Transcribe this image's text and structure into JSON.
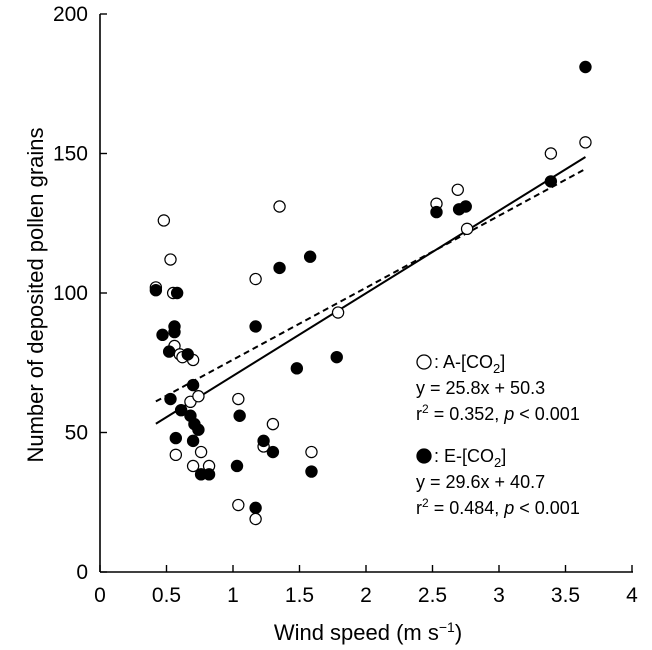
{
  "chart_data": {
    "type": "scatter",
    "xlabel": "Wind speed (m s",
    "xlabel_sup": "−1",
    "xlabel_close": ")",
    "ylabel": "Number of deposited pollen grains",
    "xlim": [
      0,
      4
    ],
    "ylim": [
      0,
      200
    ],
    "x_ticks": [
      "0",
      "0.5",
      "1",
      "1.5",
      "2",
      "2.5",
      "3",
      "3.5",
      "4"
    ],
    "y_ticks": [
      "0",
      "50",
      "100",
      "150",
      "200"
    ],
    "grid": false,
    "legend_position": "right",
    "series": [
      {
        "name": "A-[CO2]",
        "name_prefix": ": A-[CO",
        "name_sub": "2",
        "name_suffix": "]",
        "marker": "open-circle",
        "equation": "y = 25.8x + 50.3",
        "stats": {
          "r_label": "r",
          "r_sup": "2",
          "r_value": " = 0.352, ",
          "p_label": "p",
          "p_value": " < 0.001"
        },
        "fit": {
          "slope": 25.8,
          "intercept": 50.3,
          "style": "dashed"
        },
        "points": [
          [
            0.42,
            102
          ],
          [
            0.48,
            126
          ],
          [
            0.53,
            112
          ],
          [
            0.55,
            100
          ],
          [
            0.56,
            81
          ],
          [
            0.57,
            42
          ],
          [
            0.6,
            78
          ],
          [
            0.62,
            77
          ],
          [
            0.68,
            61
          ],
          [
            0.7,
            76
          ],
          [
            0.7,
            38
          ],
          [
            0.74,
            63
          ],
          [
            0.76,
            43
          ],
          [
            0.82,
            38
          ],
          [
            1.04,
            62
          ],
          [
            1.04,
            24
          ],
          [
            1.17,
            105
          ],
          [
            1.17,
            19
          ],
          [
            1.23,
            45
          ],
          [
            1.3,
            53
          ],
          [
            1.35,
            131
          ],
          [
            1.59,
            43
          ],
          [
            1.79,
            93
          ],
          [
            2.53,
            132
          ],
          [
            2.69,
            137
          ],
          [
            2.76,
            123
          ],
          [
            3.39,
            150
          ],
          [
            3.65,
            154
          ]
        ]
      },
      {
        "name": "E-[CO2]",
        "name_prefix": ": E-[CO",
        "name_sub": "2",
        "name_suffix": "]",
        "marker": "filled-circle",
        "equation": "y = 29.6x + 40.7",
        "stats": {
          "r_label": "r",
          "r_sup": "2",
          "r_value": " = 0.484, ",
          "p_label": "p",
          "p_value": " < 0.001"
        },
        "fit": {
          "slope": 29.6,
          "intercept": 40.7,
          "style": "solid"
        },
        "points": [
          [
            0.42,
            101
          ],
          [
            0.47,
            85
          ],
          [
            0.52,
            79
          ],
          [
            0.53,
            62
          ],
          [
            0.56,
            88
          ],
          [
            0.56,
            86
          ],
          [
            0.57,
            48
          ],
          [
            0.58,
            100
          ],
          [
            0.61,
            58
          ],
          [
            0.66,
            78
          ],
          [
            0.68,
            56
          ],
          [
            0.7,
            67
          ],
          [
            0.7,
            47
          ],
          [
            0.71,
            53
          ],
          [
            0.74,
            51
          ],
          [
            0.76,
            35
          ],
          [
            0.82,
            35
          ],
          [
            1.03,
            38
          ],
          [
            1.05,
            56
          ],
          [
            1.17,
            88
          ],
          [
            1.17,
            23
          ],
          [
            1.23,
            47
          ],
          [
            1.3,
            43
          ],
          [
            1.35,
            109
          ],
          [
            1.58,
            113
          ],
          [
            1.59,
            36
          ],
          [
            1.48,
            73
          ],
          [
            1.78,
            77
          ],
          [
            2.53,
            129
          ],
          [
            2.7,
            130
          ],
          [
            2.75,
            131
          ],
          [
            3.39,
            140
          ],
          [
            3.65,
            181
          ]
        ]
      }
    ]
  }
}
